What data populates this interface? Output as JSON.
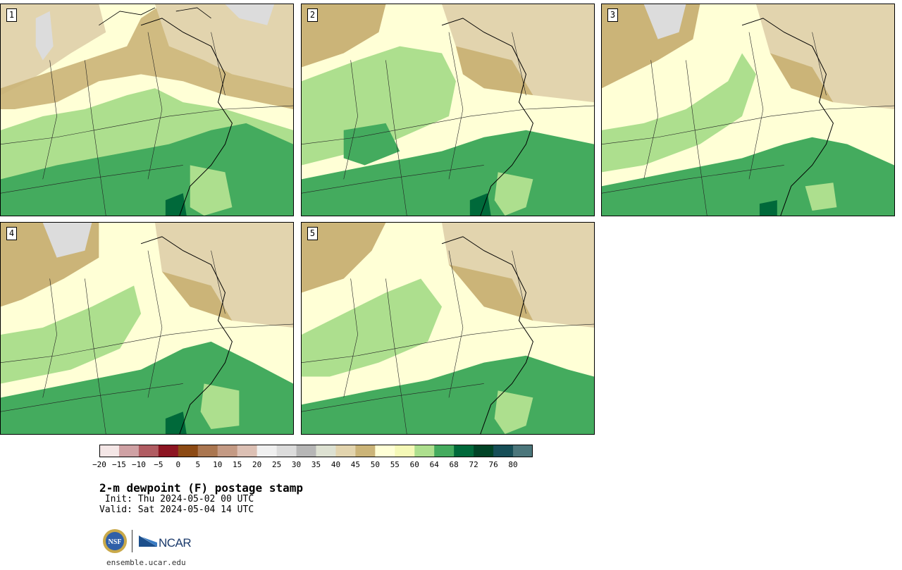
{
  "panels": [
    {
      "label": "1"
    },
    {
      "label": "2"
    },
    {
      "label": "3"
    },
    {
      "label": "4"
    },
    {
      "label": "5"
    }
  ],
  "colorbar": {
    "colors": [
      "#f4e6e6",
      "#cfa1a4",
      "#b05c62",
      "#8c1522",
      "#8c4a14",
      "#aa7650",
      "#c49a84",
      "#dcc0b4",
      "#f0f0f0",
      "#dcdcdc",
      "#b6b6b6",
      "#dde1d2",
      "#e2d4ae",
      "#cbb478",
      "#ffffd6",
      "#f5f9b7",
      "#addf8e",
      "#44ab5e",
      "#00693a",
      "#004326",
      "#164e57",
      "#4b767b"
    ],
    "ticks": [
      "−20",
      "−15",
      "−10",
      "−5",
      "0",
      "5",
      "10",
      "15",
      "20",
      "25",
      "30",
      "35",
      "40",
      "45",
      "50",
      "55",
      "60",
      "64",
      "68",
      "72",
      "76",
      "80"
    ]
  },
  "title": "2-m dewpoint (F) postage stamp",
  "init": " Init: Thu 2024-05-02 00 UTC",
  "valid": "Valid: Sat 2024-05-04 14 UTC",
  "logos": {
    "nsf": "NSF",
    "ncar": "NCAR"
  },
  "site": "ensemble.ucar.edu"
}
